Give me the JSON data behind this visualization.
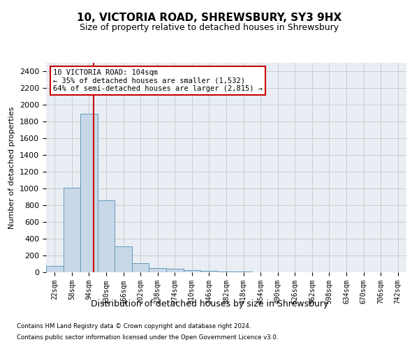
{
  "title": "10, VICTORIA ROAD, SHREWSBURY, SY3 9HX",
  "subtitle": "Size of property relative to detached houses in Shrewsbury",
  "xlabel": "Distribution of detached houses by size in Shrewsbury",
  "ylabel": "Number of detached properties",
  "bar_color": "#c8d8e8",
  "bar_edge_color": "#6699bb",
  "categories": [
    "22sqm",
    "58sqm",
    "94sqm",
    "130sqm",
    "166sqm",
    "202sqm",
    "238sqm",
    "274sqm",
    "310sqm",
    "346sqm",
    "382sqm",
    "418sqm",
    "454sqm",
    "490sqm",
    "526sqm",
    "562sqm",
    "598sqm",
    "634sqm",
    "670sqm",
    "706sqm",
    "742sqm"
  ],
  "values": [
    75,
    1005,
    1895,
    860,
    310,
    110,
    50,
    40,
    25,
    15,
    10,
    5,
    3,
    2,
    1,
    1,
    1,
    0,
    0,
    0,
    0
  ],
  "ylim": [
    0,
    2500
  ],
  "yticks": [
    0,
    200,
    400,
    600,
    800,
    1000,
    1200,
    1400,
    1600,
    1800,
    2000,
    2200,
    2400
  ],
  "property_label": "10 VICTORIA ROAD: 104sqm",
  "annotation_line1": "← 35% of detached houses are smaller (1,532)",
  "annotation_line2": "64% of semi-detached houses are larger (2,815) →",
  "vline_x_index": 2.28,
  "vline_color": "#cc0000",
  "annotation_box_color": "#cc0000",
  "grid_color": "#cccccc",
  "bg_color": "#e8eef4",
  "footer_line1": "Contains HM Land Registry data © Crown copyright and database right 2024.",
  "footer_line2": "Contains public sector information licensed under the Open Government Licence v3.0."
}
